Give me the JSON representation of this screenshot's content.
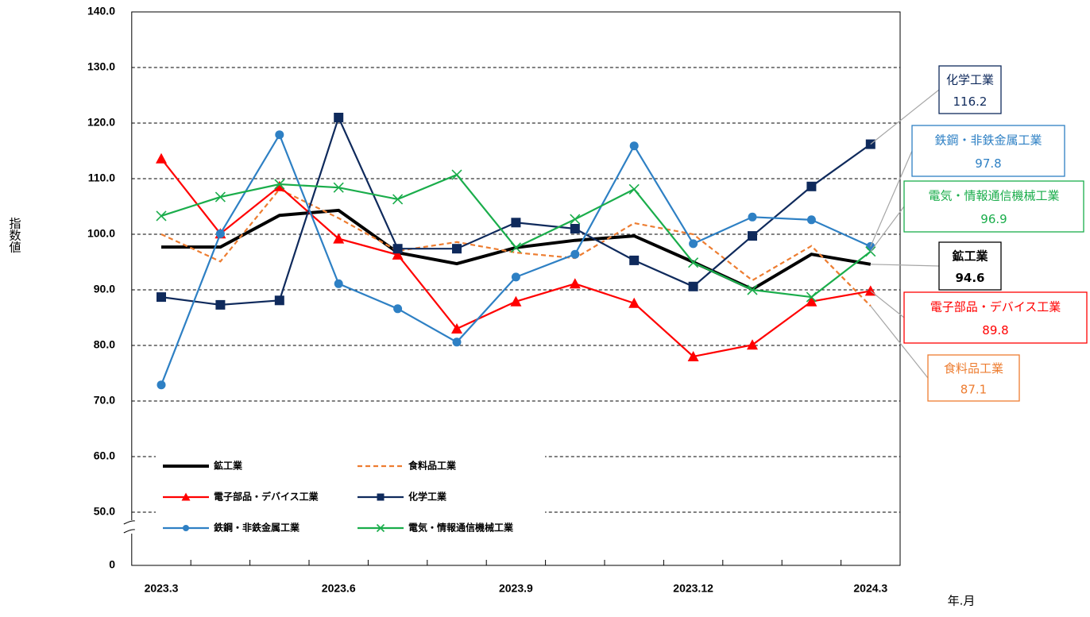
{
  "chart_data": {
    "type": "line",
    "y_label": "指数値",
    "x_label": "年.月",
    "categories": [
      "2023.3",
      null,
      null,
      "2023.6",
      null,
      null,
      "2023.9",
      null,
      null,
      "2023.12",
      null,
      null,
      "2024.3"
    ],
    "ylim": [
      0,
      140
    ],
    "yticks": [
      0,
      {
        "value": 50,
        "label": "50.0"
      },
      {
        "value": 60,
        "label": "60.0"
      },
      {
        "value": 70,
        "label": "70.0"
      },
      {
        "value": 80,
        "label": "80.0"
      },
      {
        "value": 90,
        "label": "90.0"
      },
      {
        "value": 100,
        "label": "100.0"
      },
      {
        "value": 110,
        "label": "110.0"
      },
      {
        "value": 120,
        "label": "120.0"
      },
      {
        "value": 130,
        "label": "130.0"
      },
      {
        "value": 140,
        "label": "140.0"
      }
    ],
    "axis_break": true,
    "grid": "dashed",
    "legend": "lower left",
    "series": [
      {
        "name": "鉱工業",
        "color": "#000000",
        "line_style": "bold",
        "marker": "none",
        "values": [
          97.7,
          97.7,
          103.4,
          104.3,
          96.7,
          94.7,
          97.6,
          98.9,
          99.7,
          95.0,
          90.1,
          96.4,
          94.6
        ]
      },
      {
        "name": "食料品工業",
        "color": "#ed7d31",
        "line_style": "dashed",
        "marker": "none",
        "values": [
          100.0,
          95.1,
          108.1,
          102.9,
          97.0,
          98.6,
          96.7,
          95.7,
          102.0,
          100.0,
          91.7,
          97.9,
          87.1
        ]
      },
      {
        "name": "電子部品・デバイス工業",
        "color": "#ff0000",
        "line_style": "solid",
        "marker": "triangle",
        "values": [
          113.6,
          100.1,
          108.6,
          99.2,
          96.3,
          83.0,
          87.9,
          91.1,
          87.6,
          78.0,
          80.1,
          87.9,
          89.8
        ]
      },
      {
        "name": "化学工業",
        "color": "#0f2a5c",
        "line_style": "solid",
        "marker": "square",
        "values": [
          88.7,
          87.3,
          88.1,
          121.0,
          97.4,
          97.4,
          102.1,
          101.0,
          95.3,
          90.6,
          99.7,
          108.6,
          116.2
        ]
      },
      {
        "name": "鉄鋼・非鉄金属工業",
        "color": "#2e80c4",
        "line_style": "solid",
        "marker": "circle",
        "values": [
          72.9,
          100.1,
          117.9,
          91.1,
          86.6,
          80.6,
          92.3,
          96.4,
          115.9,
          98.3,
          103.1,
          102.6,
          97.8
        ]
      },
      {
        "name": "電気・情報通信機械工業",
        "color": "#1aad4b",
        "line_style": "solid",
        "marker": "x",
        "values": [
          103.3,
          106.7,
          109.0,
          108.4,
          106.3,
          110.7,
          97.6,
          102.7,
          108.1,
          94.9,
          90.0,
          88.7,
          96.9
        ]
      }
    ]
  }
}
